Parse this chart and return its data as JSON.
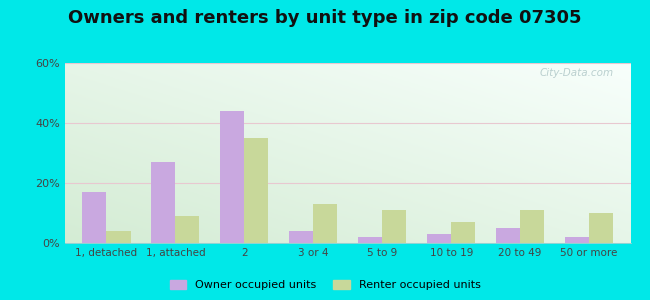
{
  "title": "Owners and renters by unit type in zip code 07305",
  "categories": [
    "1, detached",
    "1, attached",
    "2",
    "3 or 4",
    "5 to 9",
    "10 to 19",
    "20 to 49",
    "50 or more"
  ],
  "owner_values": [
    17,
    27,
    44,
    4,
    2,
    3,
    5,
    2
  ],
  "renter_values": [
    4,
    9,
    35,
    13,
    11,
    7,
    11,
    10
  ],
  "owner_color": "#c9a8e0",
  "renter_color": "#c8d89a",
  "ylim": [
    0,
    60
  ],
  "yticks": [
    0,
    20,
    40,
    60
  ],
  "ytick_labels": [
    "0%",
    "20%",
    "40%",
    "60%"
  ],
  "background_outer": "#00e8e8",
  "background_inner_top_right": "#eaf5f0",
  "background_inner_bottom_left": "#d4ecd4",
  "background_inner_white": "#f8fffc",
  "title_fontsize": 13,
  "legend_labels": [
    "Owner occupied units",
    "Renter occupied units"
  ],
  "bar_width": 0.35,
  "watermark": "City-Data.com"
}
